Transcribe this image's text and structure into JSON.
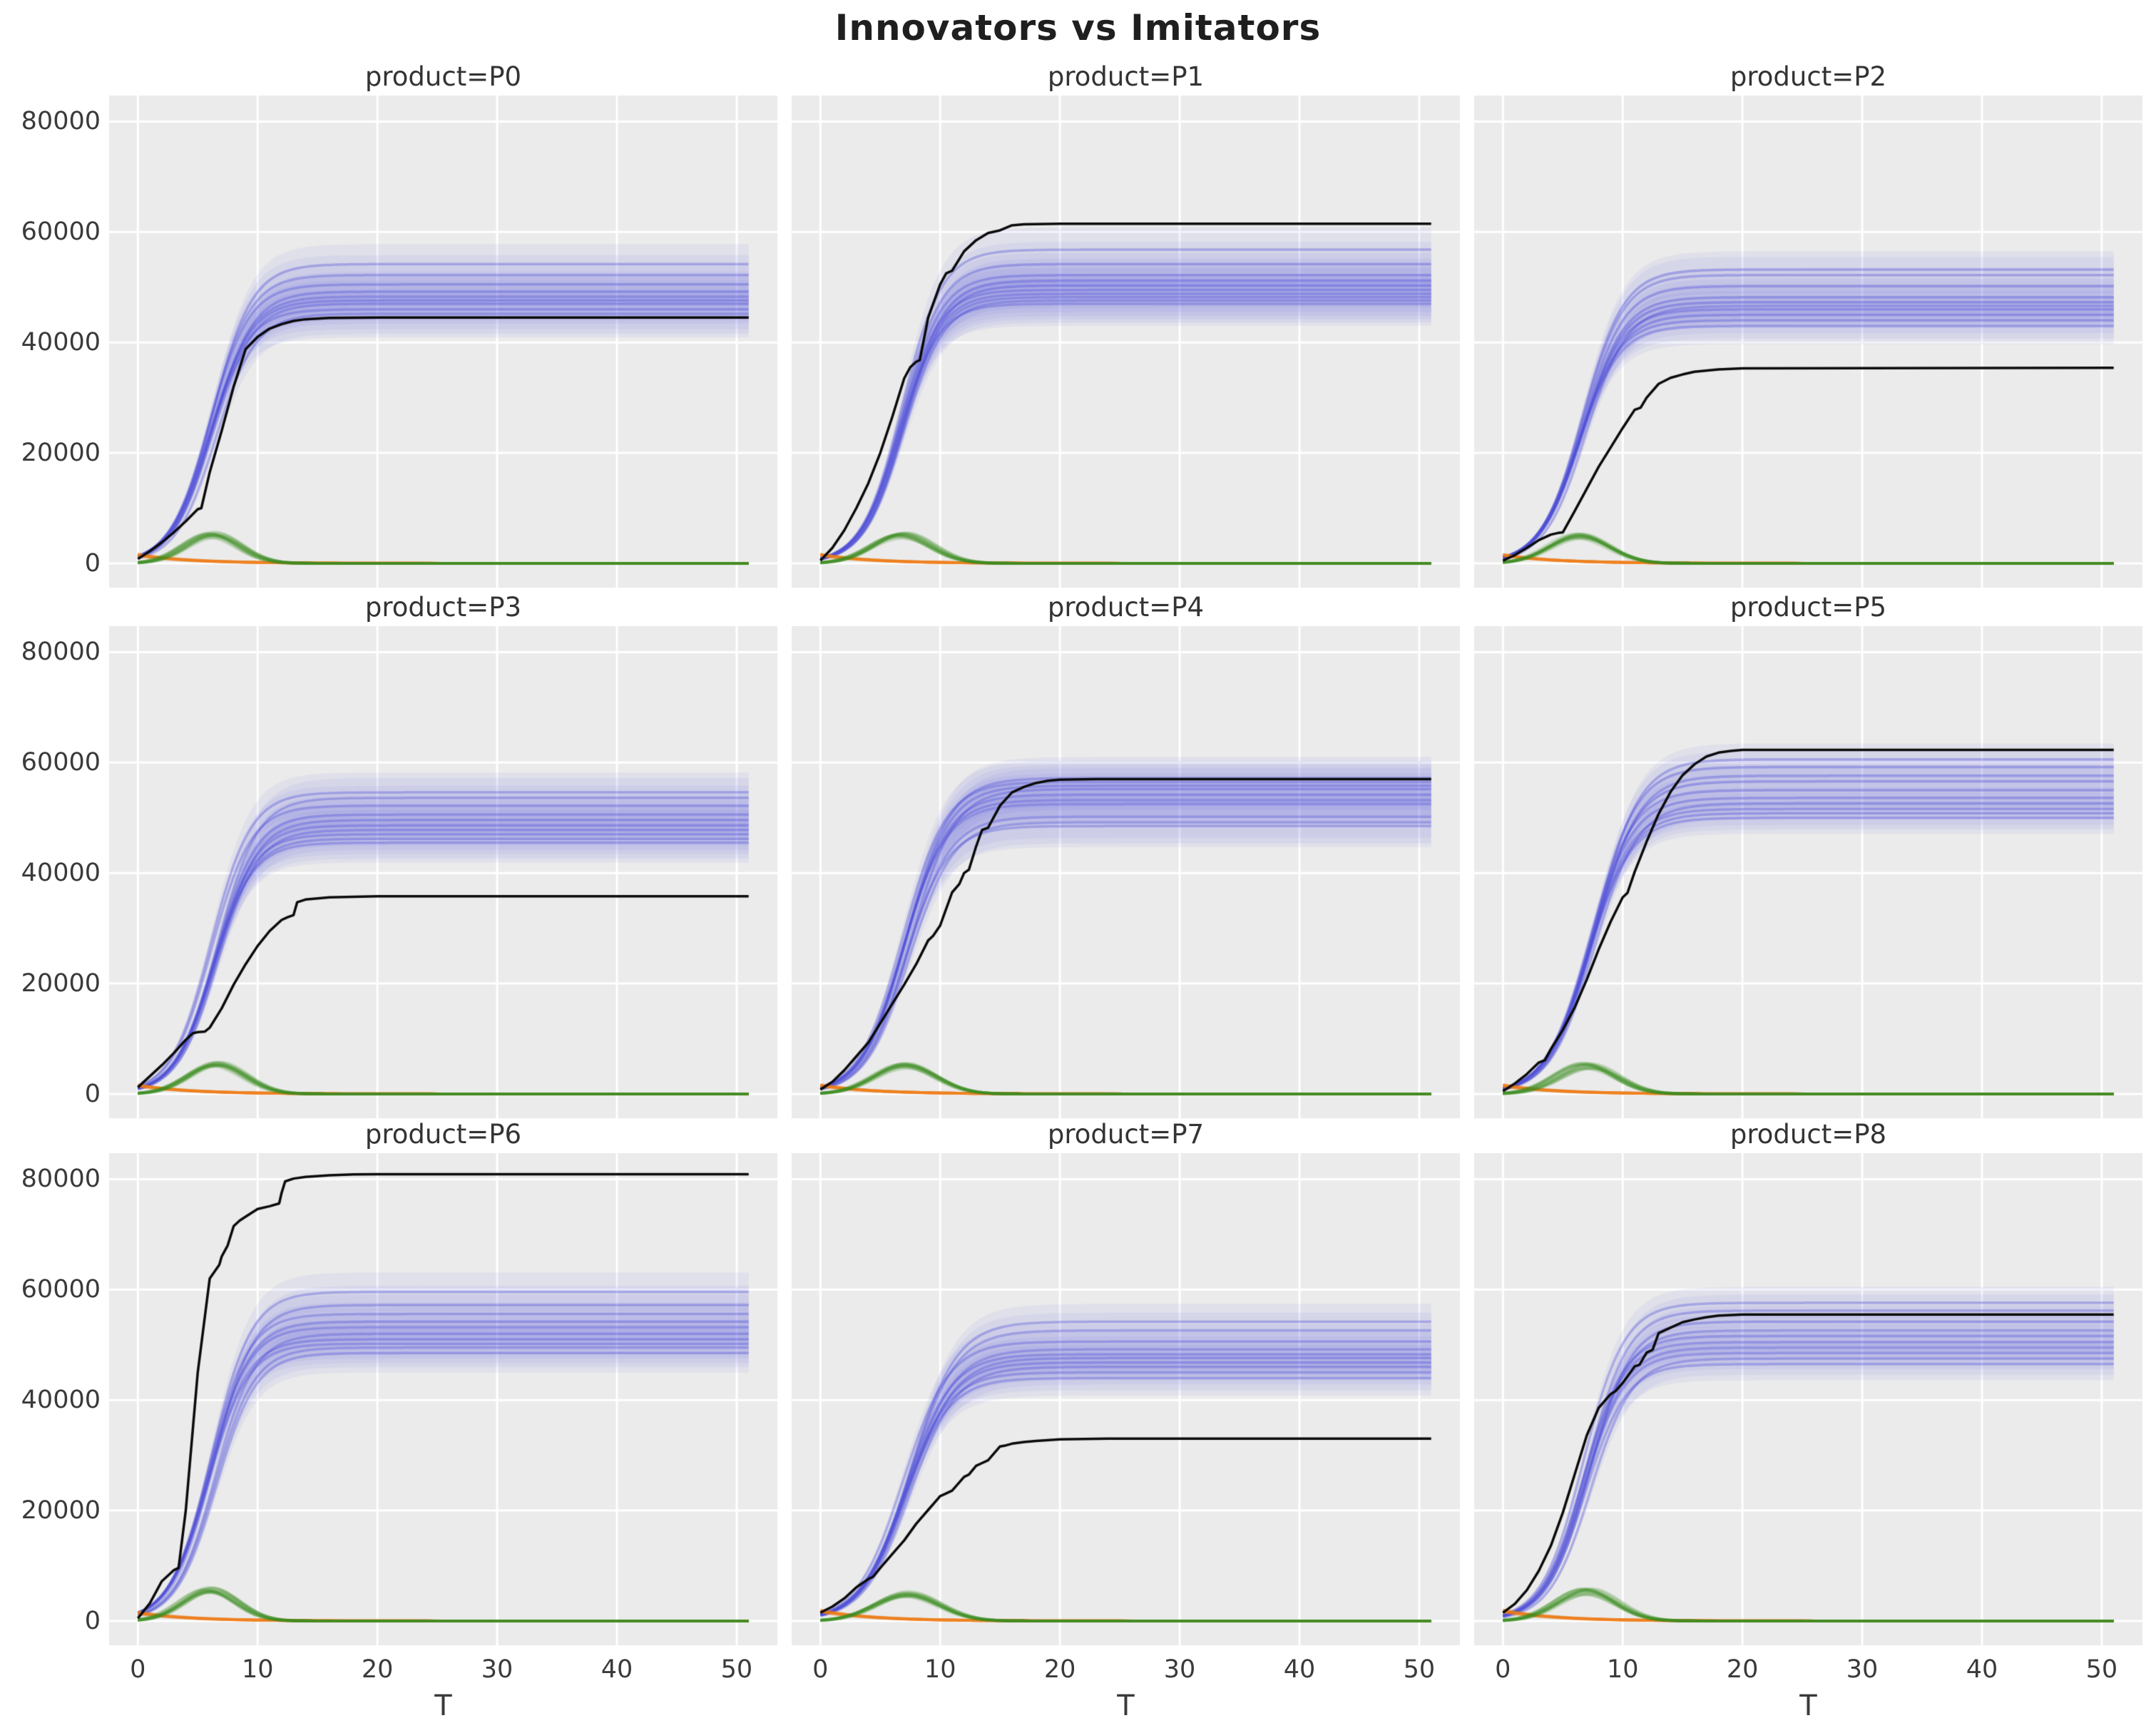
{
  "chart_data": {
    "type": "line",
    "title": "Innovators vs Imitators",
    "xlabel": "T",
    "x_ticks": [
      0,
      10,
      20,
      30,
      40,
      50
    ],
    "y_ticks": [
      0,
      20000,
      40000,
      60000,
      80000
    ],
    "xlim": [
      -2.4,
      53.4
    ],
    "ylim": [
      -4400,
      84700
    ],
    "t_end": 51,
    "grid": true,
    "legend": "none",
    "colors": {
      "axes_background": "#ebebeb",
      "grid": "#ffffff",
      "imitators_blue": "#4a4ad8",
      "imitators_band": "#6464e1",
      "innovators_green": "#3d8b1f",
      "decay_orange": "#ee7b15",
      "observed_black": "#0a0a0a",
      "text": "#3a3a3a"
    },
    "runs_per_panel": 10,
    "panels": [
      {
        "title": "product=P0",
        "product": "P0",
        "blue": {
          "saturations": [
            44500,
            45200,
            46000,
            47000,
            47600,
            48300,
            49200,
            50500,
            52200,
            54200
          ],
          "band_halfwidth": 3600,
          "mid": 6.2,
          "rate": 0.6
        },
        "green": {
          "peak": 5200,
          "peak_t": 6.2,
          "width": 2.3
        },
        "orange": {
          "start": 1500,
          "decay": 0.22
        },
        "black": [
          [
            0,
            800
          ],
          [
            1,
            2200
          ],
          [
            2,
            3800
          ],
          [
            3,
            5600
          ],
          [
            4,
            7600
          ],
          [
            5,
            9800
          ],
          [
            5.3,
            10000
          ],
          [
            6,
            16500
          ],
          [
            7,
            24000
          ],
          [
            8,
            32000
          ],
          [
            9,
            38800
          ],
          [
            10,
            41000
          ],
          [
            11,
            42500
          ],
          [
            12,
            43300
          ],
          [
            13,
            43900
          ],
          [
            14,
            44200
          ],
          [
            16,
            44450
          ],
          [
            20,
            44500
          ],
          [
            51,
            44500
          ]
        ]
      },
      {
        "title": "product=P1",
        "product": "P1",
        "blue": {
          "saturations": [
            47000,
            47600,
            48200,
            48800,
            49500,
            50300,
            51200,
            52200,
            54200,
            56800
          ],
          "band_halfwidth": 4000,
          "mid": 6.8,
          "rate": 0.6
        },
        "green": {
          "peak": 5000,
          "peak_t": 6.8,
          "width": 2.5
        },
        "orange": {
          "start": 1500,
          "decay": 0.22
        },
        "black": [
          [
            0,
            500
          ],
          [
            1,
            2800
          ],
          [
            2,
            6000
          ],
          [
            3,
            10000
          ],
          [
            4,
            14500
          ],
          [
            5,
            20000
          ],
          [
            6,
            26500
          ],
          [
            7,
            33500
          ],
          [
            7.5,
            35500
          ],
          [
            8,
            36500
          ],
          [
            8.3,
            36800
          ],
          [
            9,
            44500
          ],
          [
            10,
            50500
          ],
          [
            10.5,
            52500
          ],
          [
            11,
            53000
          ],
          [
            12,
            56500
          ],
          [
            13,
            58500
          ],
          [
            14,
            59800
          ],
          [
            15,
            60300
          ],
          [
            16,
            61200
          ],
          [
            17,
            61400
          ],
          [
            20,
            61500
          ],
          [
            51,
            61500
          ]
        ]
      },
      {
        "title": "product=P2",
        "product": "P2",
        "blue": {
          "saturations": [
            43000,
            44000,
            45000,
            46000,
            46600,
            47300,
            48200,
            50200,
            52200,
            53200
          ],
          "band_halfwidth": 3300,
          "mid": 6.6,
          "rate": 0.58
        },
        "green": {
          "peak": 5000,
          "peak_t": 6.5,
          "width": 2.5
        },
        "orange": {
          "start": 1500,
          "decay": 0.22
        },
        "black": [
          [
            0,
            500
          ],
          [
            1,
            1500
          ],
          [
            2,
            2800
          ],
          [
            3,
            4200
          ],
          [
            4,
            5200
          ],
          [
            4.6,
            5500
          ],
          [
            5,
            5600
          ],
          [
            6,
            9500
          ],
          [
            7,
            13500
          ],
          [
            8,
            17500
          ],
          [
            9,
            21000
          ],
          [
            10,
            24500
          ],
          [
            11,
            27800
          ],
          [
            11.5,
            28200
          ],
          [
            12,
            30000
          ],
          [
            13,
            32500
          ],
          [
            14,
            33600
          ],
          [
            15,
            34200
          ],
          [
            16,
            34700
          ],
          [
            18,
            35100
          ],
          [
            20,
            35300
          ],
          [
            51,
            35400
          ]
        ]
      },
      {
        "title": "product=P3",
        "product": "P3",
        "blue": {
          "saturations": [
            45500,
            46200,
            47000,
            47800,
            48600,
            49600,
            50600,
            52200,
            53600,
            54600
          ],
          "band_halfwidth": 3600,
          "mid": 6.4,
          "rate": 0.6
        },
        "green": {
          "peak": 5600,
          "peak_t": 6.5,
          "width": 2.4
        },
        "orange": {
          "start": 1500,
          "decay": 0.22
        },
        "black": [
          [
            0,
            1200
          ],
          [
            1,
            3200
          ],
          [
            2,
            5200
          ],
          [
            3,
            7400
          ],
          [
            4,
            9800
          ],
          [
            4.6,
            11000
          ],
          [
            5,
            11200
          ],
          [
            5.6,
            11300
          ],
          [
            6,
            12000
          ],
          [
            7,
            15500
          ],
          [
            8,
            19800
          ],
          [
            9,
            23500
          ],
          [
            10,
            26800
          ],
          [
            11,
            29500
          ],
          [
            12,
            31500
          ],
          [
            12.5,
            32000
          ],
          [
            13,
            32400
          ],
          [
            13.3,
            34700
          ],
          [
            14,
            35200
          ],
          [
            15,
            35400
          ],
          [
            16,
            35600
          ],
          [
            18,
            35700
          ],
          [
            20,
            35800
          ],
          [
            51,
            35800
          ]
        ]
      },
      {
        "title": "product=P4",
        "product": "P4",
        "blue": {
          "saturations": [
            48500,
            49200,
            50200,
            52500,
            53200,
            54200,
            55200,
            55800,
            56500,
            57200
          ],
          "band_halfwidth": 3800,
          "mid": 7.2,
          "rate": 0.55
        },
        "green": {
          "peak": 5100,
          "peak_t": 7.0,
          "width": 2.6
        },
        "orange": {
          "start": 1500,
          "decay": 0.22
        },
        "black": [
          [
            0,
            800
          ],
          [
            1,
            2200
          ],
          [
            2,
            4300
          ],
          [
            3,
            6800
          ],
          [
            4,
            9300
          ],
          [
            5,
            12800
          ],
          [
            6,
            16300
          ],
          [
            7,
            19800
          ],
          [
            8,
            23500
          ],
          [
            9,
            27800
          ],
          [
            9.4,
            28600
          ],
          [
            10,
            30500
          ],
          [
            11,
            36500
          ],
          [
            11.6,
            38000
          ],
          [
            12,
            40000
          ],
          [
            12.4,
            40600
          ],
          [
            13,
            44800
          ],
          [
            13.5,
            47800
          ],
          [
            14,
            48200
          ],
          [
            15,
            52200
          ],
          [
            16,
            54600
          ],
          [
            17,
            55600
          ],
          [
            18,
            56300
          ],
          [
            19,
            56700
          ],
          [
            20,
            56900
          ],
          [
            23,
            57000
          ],
          [
            51,
            57000
          ]
        ]
      },
      {
        "title": "product=P5",
        "product": "P5",
        "blue": {
          "saturations": [
            50000,
            50800,
            51600,
            52600,
            53600,
            55000,
            56600,
            57600,
            59200,
            60600
          ],
          "band_halfwidth": 2900,
          "mid": 7.4,
          "rate": 0.55
        },
        "green": {
          "peak": 5100,
          "peak_t": 7.0,
          "width": 2.5
        },
        "orange": {
          "start": 1500,
          "decay": 0.22
        },
        "black": [
          [
            0,
            500
          ],
          [
            1,
            1900
          ],
          [
            2,
            3600
          ],
          [
            3,
            5700
          ],
          [
            3.5,
            6100
          ],
          [
            4,
            8100
          ],
          [
            5,
            11600
          ],
          [
            6,
            15700
          ],
          [
            7,
            20700
          ],
          [
            8,
            26200
          ],
          [
            9,
            31200
          ],
          [
            10,
            35600
          ],
          [
            10.4,
            36400
          ],
          [
            11,
            40200
          ],
          [
            12,
            45700
          ],
          [
            13,
            50700
          ],
          [
            14,
            54700
          ],
          [
            15,
            57700
          ],
          [
            16,
            59700
          ],
          [
            17,
            61100
          ],
          [
            18,
            61800
          ],
          [
            19,
            62100
          ],
          [
            20,
            62300
          ],
          [
            51,
            62300
          ]
        ]
      },
      {
        "title": "product=P6",
        "product": "P6",
        "blue": {
          "saturations": [
            48500,
            49500,
            50200,
            51000,
            52000,
            53200,
            54200,
            55600,
            57200,
            59600
          ],
          "band_halfwidth": 3500,
          "mid": 6.2,
          "rate": 0.6
        },
        "green": {
          "peak": 5600,
          "peak_t": 6.0,
          "width": 2.3
        },
        "orange": {
          "start": 1500,
          "decay": 0.22
        },
        "black": [
          [
            0,
            500
          ],
          [
            1,
            3200
          ],
          [
            2,
            7200
          ],
          [
            3,
            9200
          ],
          [
            3.4,
            9600
          ],
          [
            4,
            20000
          ],
          [
            5,
            45000
          ],
          [
            6,
            62000
          ],
          [
            6.8,
            64500
          ],
          [
            7,
            66000
          ],
          [
            7.5,
            68000
          ],
          [
            8,
            71500
          ],
          [
            8.5,
            72500
          ],
          [
            9,
            73200
          ],
          [
            10,
            74600
          ],
          [
            11,
            75100
          ],
          [
            11.8,
            75600
          ],
          [
            12,
            77500
          ],
          [
            12.3,
            79600
          ],
          [
            13,
            80100
          ],
          [
            14,
            80400
          ],
          [
            16,
            80700
          ],
          [
            18,
            80850
          ],
          [
            20,
            80900
          ],
          [
            51,
            80900
          ]
        ]
      },
      {
        "title": "product=P7",
        "product": "P7",
        "blue": {
          "saturations": [
            44000,
            45000,
            46000,
            46800,
            47600,
            48300,
            49200,
            50600,
            52600,
            54200
          ],
          "band_halfwidth": 3200,
          "mid": 7.2,
          "rate": 0.52
        },
        "green": {
          "peak": 4800,
          "peak_t": 7.2,
          "width": 2.7
        },
        "orange": {
          "start": 1800,
          "decay": 0.22
        },
        "black": [
          [
            0,
            1500
          ],
          [
            1,
            2600
          ],
          [
            2,
            4100
          ],
          [
            3,
            6100
          ],
          [
            4,
            7600
          ],
          [
            4.4,
            8000
          ],
          [
            5,
            9600
          ],
          [
            6,
            12100
          ],
          [
            7,
            14600
          ],
          [
            8,
            17600
          ],
          [
            9,
            20100
          ],
          [
            10,
            22600
          ],
          [
            10.4,
            23000
          ],
          [
            11,
            23600
          ],
          [
            12,
            26100
          ],
          [
            12.4,
            26500
          ],
          [
            13,
            28100
          ],
          [
            13.4,
            28500
          ],
          [
            14,
            29100
          ],
          [
            15,
            31600
          ],
          [
            15.5,
            31800
          ],
          [
            16,
            32100
          ],
          [
            17,
            32400
          ],
          [
            18,
            32600
          ],
          [
            20,
            32900
          ],
          [
            24,
            33000
          ],
          [
            51,
            33000
          ]
        ]
      },
      {
        "title": "product=P8",
        "product": "P8",
        "blue": {
          "saturations": [
            46500,
            47500,
            48500,
            49500,
            50500,
            51600,
            52600,
            54200,
            56200,
            57600
          ],
          "band_halfwidth": 2900,
          "mid": 7.0,
          "rate": 0.58
        },
        "green": {
          "peak": 5300,
          "peak_t": 7.0,
          "width": 2.5
        },
        "orange": {
          "start": 1800,
          "decay": 0.22
        },
        "black": [
          [
            0,
            1500
          ],
          [
            1,
            3100
          ],
          [
            2,
            5600
          ],
          [
            3,
            9100
          ],
          [
            4,
            13600
          ],
          [
            5,
            19600
          ],
          [
            6,
            26600
          ],
          [
            7,
            33600
          ],
          [
            8,
            38600
          ],
          [
            9,
            41100
          ],
          [
            9.4,
            41600
          ],
          [
            10,
            43100
          ],
          [
            11,
            46100
          ],
          [
            11.4,
            46400
          ],
          [
            12,
            48600
          ],
          [
            12.5,
            49100
          ],
          [
            13,
            52100
          ],
          [
            14,
            53100
          ],
          [
            15,
            54100
          ],
          [
            16,
            54600
          ],
          [
            17,
            55000
          ],
          [
            18,
            55300
          ],
          [
            20,
            55500
          ],
          [
            51,
            55500
          ]
        ]
      }
    ]
  }
}
